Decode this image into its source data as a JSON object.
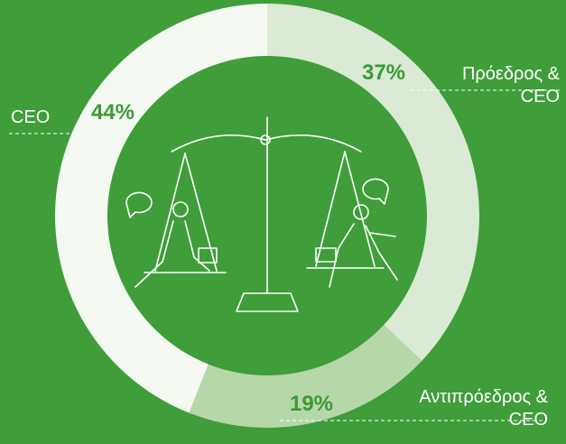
{
  "chart_data": {
    "type": "donut",
    "categories": [
      "Πρόεδρος & CEO",
      "Αντιπρόεδρος & CEO",
      "CEO"
    ],
    "values": [
      37,
      19,
      44
    ],
    "value_labels": [
      "37%",
      "19%",
      "44%"
    ],
    "colors": [
      "#dbead4",
      "#b6d7a8",
      "#f4f9f2"
    ]
  }
}
